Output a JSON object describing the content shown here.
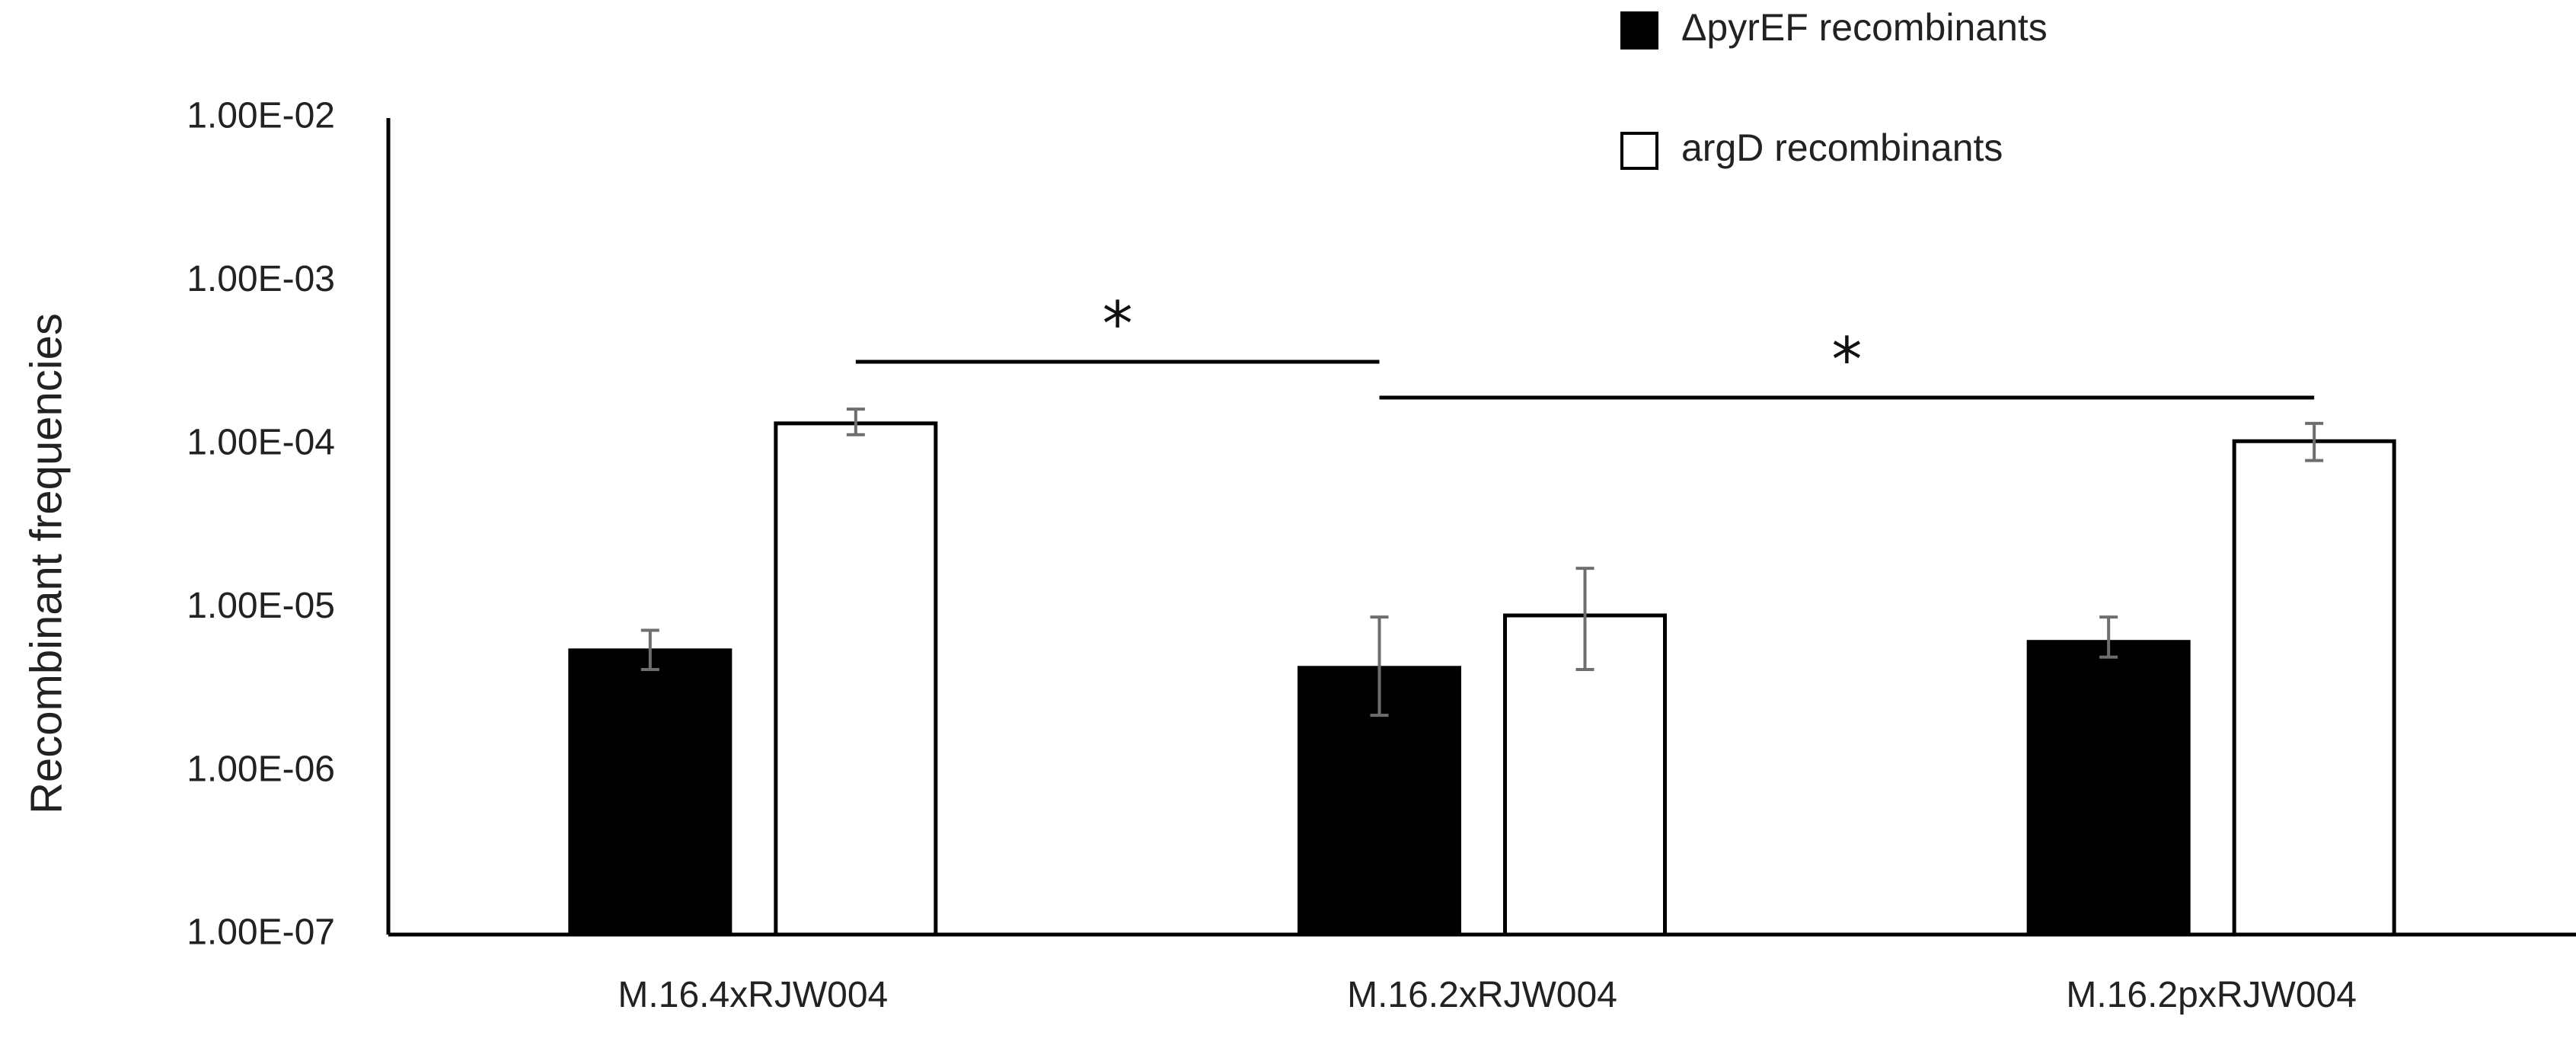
{
  "chart_data": {
    "type": "bar",
    "title": "",
    "xlabel": "",
    "ylabel": "Recombinant frequencies",
    "scale": "log10",
    "ylim": [
      1e-07,
      0.01
    ],
    "ytick_labels": [
      "1.00E-07",
      "1.00E-06",
      "1.00E-05",
      "1.00E-04",
      "1.00E-03",
      "1.00E-02"
    ],
    "ytick_values": [
      1e-07,
      1e-06,
      1e-05,
      0.0001,
      0.001,
      0.01
    ],
    "categories": [
      "M.16.4xRJW004",
      "M.16.2xRJW004",
      "M.16.2pxRJW004"
    ],
    "series": [
      {
        "name": "ΔpyrEF recombinants",
        "color": "#000000",
        "values": [
          5.5e-06,
          4.3e-06,
          6.2e-06
        ],
        "err_low": [
          4.2e-06,
          2.2e-06,
          5e-06
        ],
        "err_high": [
          7.3e-06,
          8.8e-06,
          8.8e-06
        ]
      },
      {
        "name": "argD recombinants",
        "color": "#ffffff",
        "values": [
          0.000135,
          9e-06,
          0.000105
        ],
        "err_low": [
          0.000115,
          4.2e-06,
          8e-05
        ],
        "err_high": [
          0.000165,
          1.75e-05,
          0.000135
        ]
      }
    ],
    "significance": [
      {
        "label": "*",
        "from": [
          0,
          1
        ],
        "to": [
          1,
          0
        ]
      },
      {
        "label": "*",
        "from": [
          1,
          0
        ],
        "to": [
          2,
          1
        ]
      }
    ],
    "legend_position": "top-right",
    "grid": false
  }
}
